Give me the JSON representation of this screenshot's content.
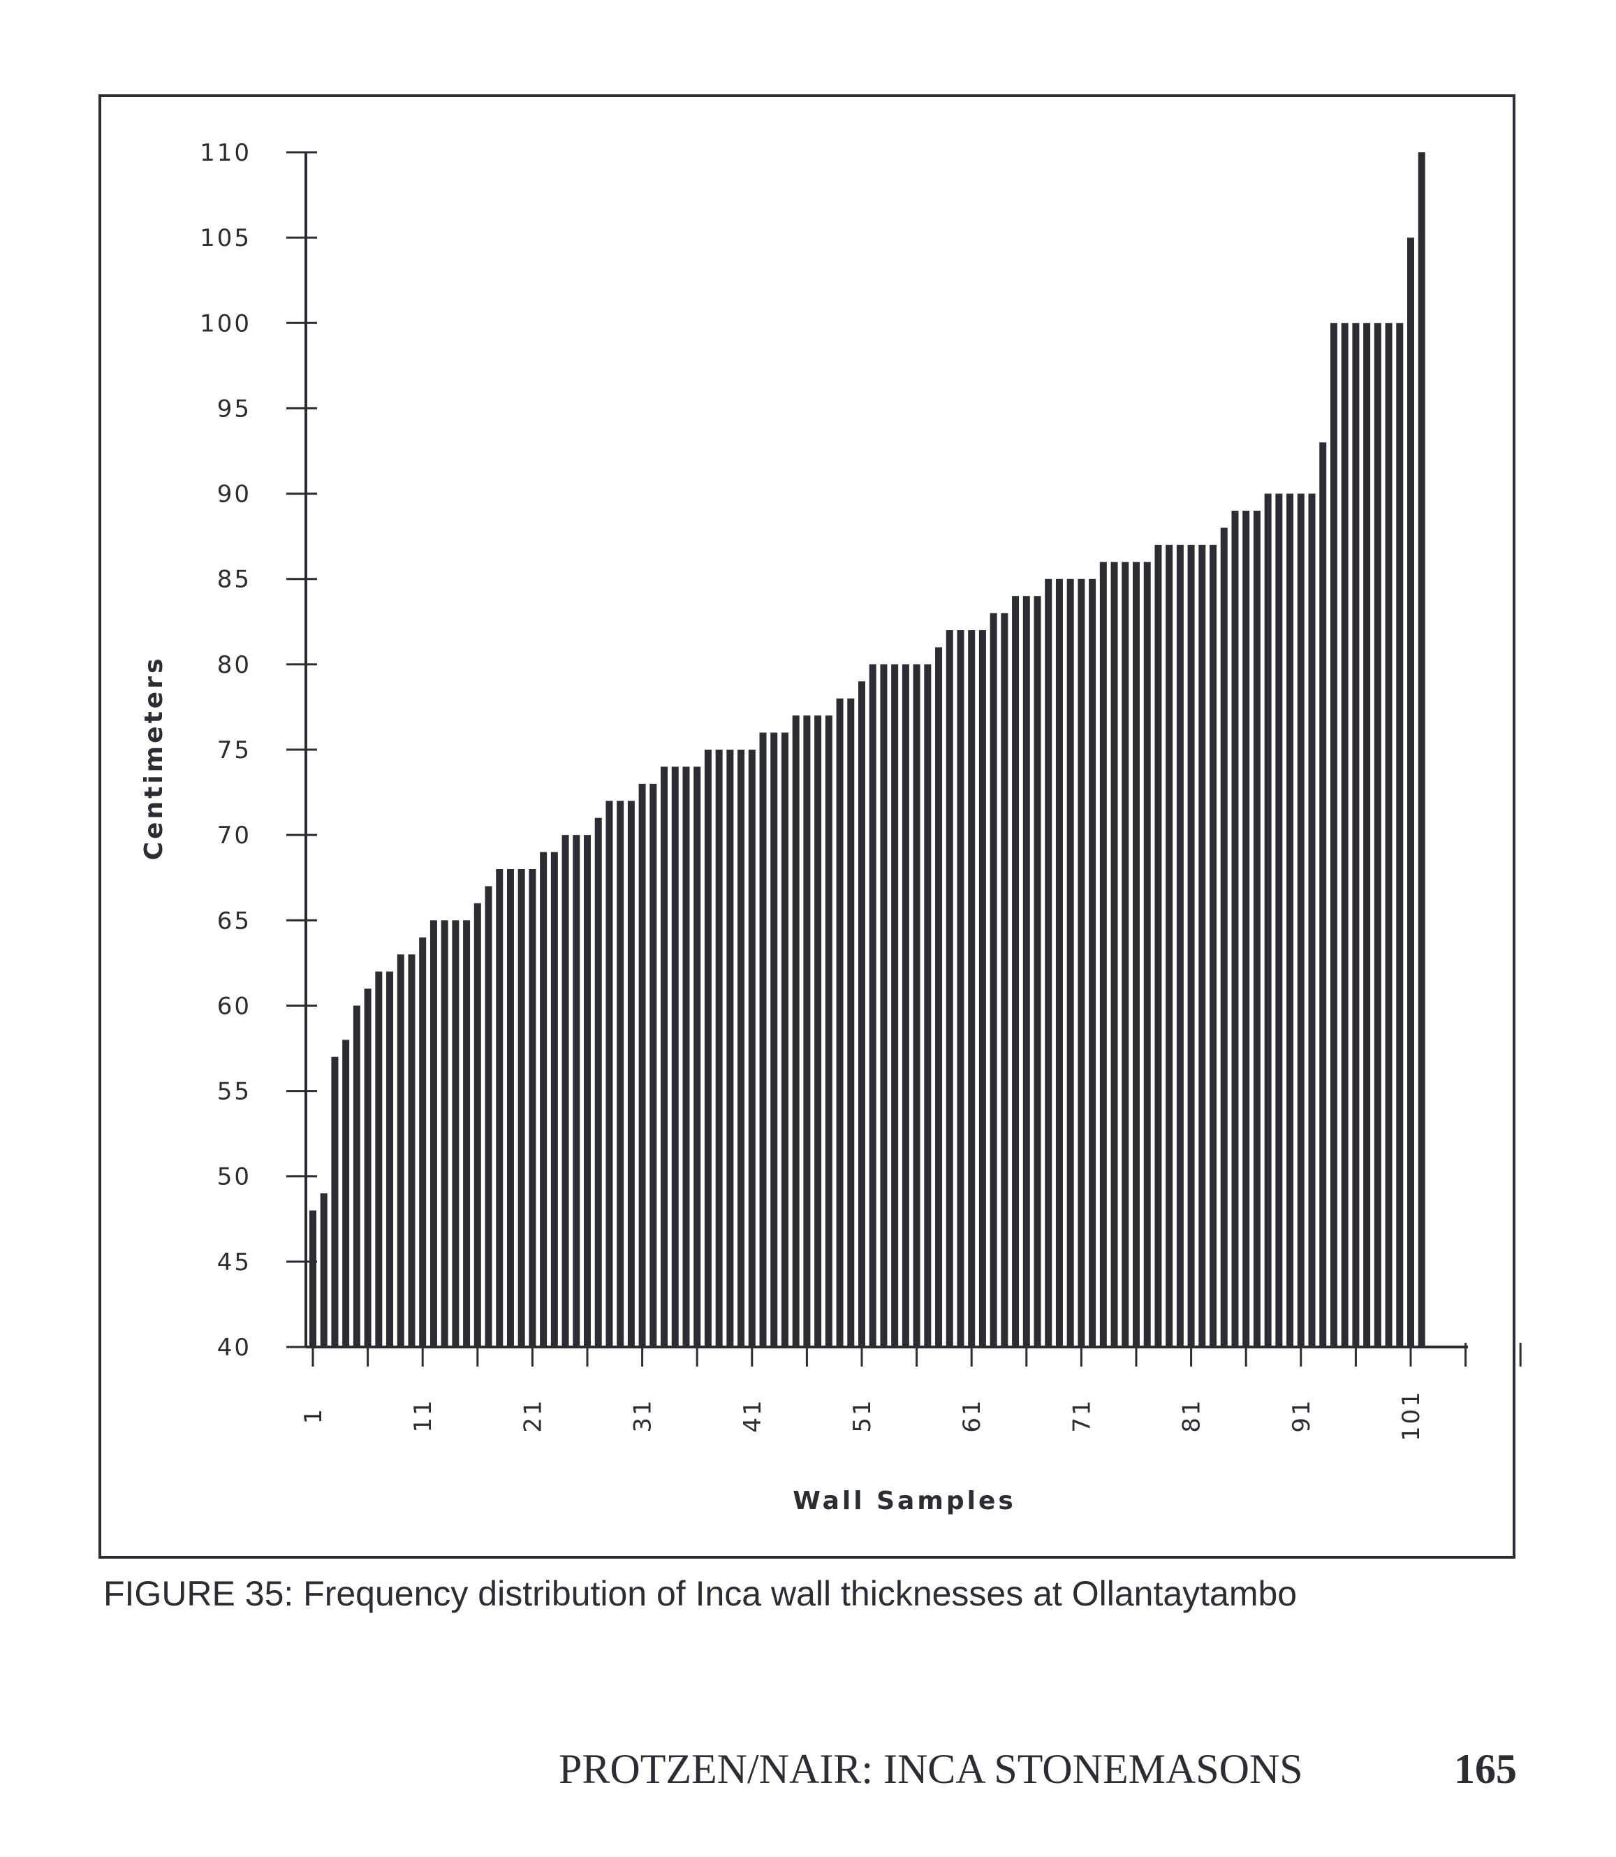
{
  "chart_data": {
    "type": "bar",
    "xlabel": "Wall Samples",
    "ylabel": "Centimeters",
    "ylim": [
      40,
      110
    ],
    "yticks": [
      40,
      45,
      50,
      55,
      60,
      65,
      70,
      75,
      80,
      85,
      90,
      95,
      100,
      105,
      110
    ],
    "xtick_labels": [
      "1",
      "11",
      "21",
      "31",
      "41",
      "51",
      "61",
      "71",
      "81",
      "91",
      "101"
    ],
    "x": [
      1,
      2,
      3,
      4,
      5,
      6,
      7,
      8,
      9,
      10,
      11,
      12,
      13,
      14,
      15,
      16,
      17,
      18,
      19,
      20,
      21,
      22,
      23,
      24,
      25,
      26,
      27,
      28,
      29,
      30,
      31,
      32,
      33,
      34,
      35,
      36,
      37,
      38,
      39,
      40,
      41,
      42,
      43,
      44,
      45,
      46,
      47,
      48,
      49,
      50,
      51,
      52,
      53,
      54,
      55,
      56,
      57,
      58,
      59,
      60,
      61,
      62,
      63,
      64,
      65,
      66,
      67,
      68,
      69,
      70,
      71,
      72,
      73,
      74,
      75,
      76,
      77,
      78,
      79,
      80,
      81,
      82,
      83,
      84,
      85,
      86,
      87,
      88,
      89,
      90,
      91,
      92,
      93,
      94,
      95,
      96,
      97,
      98,
      99,
      100,
      101,
      102
    ],
    "values": [
      48,
      49,
      57,
      58,
      60,
      61,
      62,
      62,
      63,
      63,
      64,
      65,
      65,
      65,
      65,
      66,
      67,
      68,
      68,
      68,
      68,
      69,
      69,
      70,
      70,
      70,
      71,
      72,
      72,
      72,
      73,
      73,
      74,
      74,
      74,
      74,
      75,
      75,
      75,
      75,
      75,
      76,
      76,
      76,
      77,
      77,
      77,
      77,
      78,
      78,
      79,
      80,
      80,
      80,
      80,
      80,
      80,
      81,
      82,
      82,
      82,
      82,
      83,
      83,
      84,
      84,
      84,
      85,
      85,
      85,
      85,
      85,
      86,
      86,
      86,
      86,
      86,
      87,
      87,
      87,
      87,
      87,
      87,
      88,
      89,
      89,
      89,
      90,
      90,
      90,
      90,
      90,
      93,
      100,
      100,
      100,
      100,
      100,
      100,
      100,
      105,
      110
    ],
    "grid": false,
    "legend": "none"
  },
  "caption": "FIGURE 35: Frequency distribution of Inca wall thicknesses at Ollantaytambo",
  "running_head": "PROTZEN/NAIR: INCA STONEMASONS",
  "page_number": "165",
  "colors": {
    "ink": "#2b2d33",
    "paper": "#ffffff"
  }
}
